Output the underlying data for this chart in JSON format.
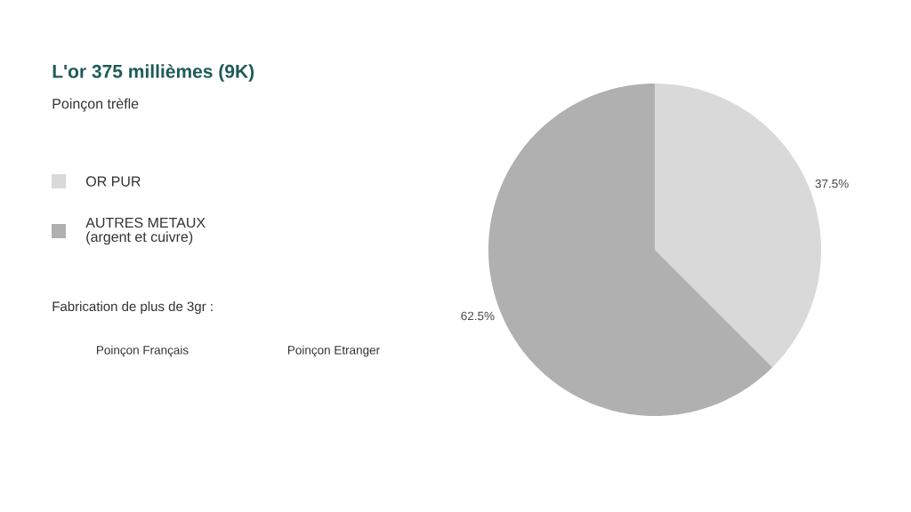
{
  "chart_data": {
    "type": "pie",
    "title": "L'or 375 millièmes (9K)",
    "subtitle": "Poinçon trèfle",
    "categories": [
      "OR PUR",
      "AUTRES METAUX (argent et cuivre)"
    ],
    "values": [
      37.5,
      62.5
    ],
    "colors": [
      "#d9d9d9",
      "#b0b0b0"
    ],
    "value_labels": [
      "37.5%",
      "62.5%"
    ],
    "legend": "left",
    "annotations": [
      "Fabrication de plus de 3gr :",
      "Poinçon Français",
      "Poinçon Etranger"
    ]
  }
}
